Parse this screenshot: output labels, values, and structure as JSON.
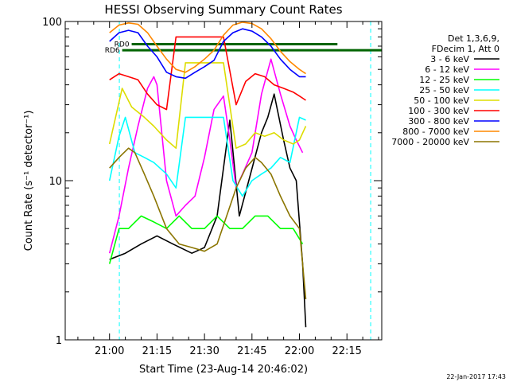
{
  "chart_data": {
    "type": "line",
    "title": "HESSI Observing Summary Count Rates",
    "xlabel": "Start Time (23-Aug-14 20:46:02)",
    "ylabel": "Count Rate (s⁻¹ detector⁻¹)",
    "yscale": "log",
    "ylim": [
      1,
      100
    ],
    "xlim_minutes": [
      -14,
      86
    ],
    "x_ticks": [
      {
        "label": "21:00",
        "min": 0
      },
      {
        "label": "21:15",
        "min": 15
      },
      {
        "label": "21:30",
        "min": 30
      },
      {
        "label": "21:45",
        "min": 45
      },
      {
        "label": "22:00",
        "min": 60
      },
      {
        "label": "22:15",
        "min": 75
      }
    ],
    "y_ticks": [
      {
        "label": "1",
        "value": 1
      },
      {
        "label": "10",
        "value": 10
      },
      {
        "label": "100",
        "value": 100
      }
    ],
    "legend_header": [
      "Det 1,3,6,9,",
      "FDecim 1, Att 0"
    ],
    "legend_position": "right",
    "annotations": [
      {
        "label": "RD0",
        "start_min": 7,
        "end_min": 72,
        "value": 72,
        "color": "#006400"
      },
      {
        "label": "RD6",
        "start_min": 4,
        "end_min": 86,
        "value": 66,
        "color": "#006400"
      }
    ],
    "vertical_markers_min": [
      3.1,
      82.5
    ],
    "series": [
      {
        "name": "3 - 6 keV",
        "color": "#000000",
        "points": [
          [
            0,
            3.2
          ],
          [
            5,
            3.5
          ],
          [
            10,
            4
          ],
          [
            15,
            4.5
          ],
          [
            20,
            4
          ],
          [
            26,
            3.5
          ],
          [
            30,
            3.8
          ],
          [
            34,
            6
          ],
          [
            38,
            24
          ],
          [
            41,
            6
          ],
          [
            44,
            10
          ],
          [
            48,
            20
          ],
          [
            50,
            25
          ],
          [
            52,
            35
          ],
          [
            55,
            18
          ],
          [
            57,
            12
          ],
          [
            59,
            10
          ],
          [
            61,
            3
          ],
          [
            62,
            1.2
          ]
        ]
      },
      {
        "name": "6 - 12 keV",
        "color": "#ff00ff",
        "points": [
          [
            0,
            3.5
          ],
          [
            3,
            6
          ],
          [
            6,
            12
          ],
          [
            9,
            22
          ],
          [
            12,
            38
          ],
          [
            14,
            45
          ],
          [
            15,
            40
          ],
          [
            18,
            10
          ],
          [
            21,
            6
          ],
          [
            24,
            7
          ],
          [
            27,
            8
          ],
          [
            30,
            14
          ],
          [
            33,
            28
          ],
          [
            36,
            34
          ],
          [
            38,
            18
          ],
          [
            40,
            9
          ],
          [
            42,
            11
          ],
          [
            45,
            15
          ],
          [
            48,
            35
          ],
          [
            51,
            58
          ],
          [
            54,
            35
          ],
          [
            57,
            22
          ],
          [
            59,
            18
          ],
          [
            61,
            15
          ]
        ]
      },
      {
        "name": "12 - 25 keV",
        "color": "#00ff00",
        "points": [
          [
            0,
            3
          ],
          [
            3,
            5
          ],
          [
            6,
            5
          ],
          [
            10,
            6
          ],
          [
            14,
            5.5
          ],
          [
            18,
            5
          ],
          [
            22,
            6
          ],
          [
            26,
            5
          ],
          [
            30,
            5
          ],
          [
            34,
            6
          ],
          [
            38,
            5
          ],
          [
            42,
            5
          ],
          [
            46,
            6
          ],
          [
            50,
            6
          ],
          [
            54,
            5
          ],
          [
            58,
            5
          ],
          [
            61,
            4
          ]
        ]
      },
      {
        "name": "25 - 50 keV",
        "color": "#00ffff",
        "points": [
          [
            0,
            10
          ],
          [
            3,
            19
          ],
          [
            5,
            25
          ],
          [
            8,
            15
          ],
          [
            11,
            14
          ],
          [
            14,
            13
          ],
          [
            18,
            11
          ],
          [
            21,
            9
          ],
          [
            24,
            25
          ],
          [
            30,
            25
          ],
          [
            36,
            25
          ],
          [
            39,
            10
          ],
          [
            42,
            8
          ],
          [
            45,
            10
          ],
          [
            48,
            11
          ],
          [
            51,
            12
          ],
          [
            54,
            14
          ],
          [
            57,
            13
          ],
          [
            60,
            25
          ],
          [
            62,
            24
          ]
        ]
      },
      {
        "name": "50 - 100 keV",
        "color": "#dddd00",
        "points": [
          [
            0,
            17
          ],
          [
            4,
            38
          ],
          [
            7,
            29
          ],
          [
            11,
            25
          ],
          [
            14,
            22
          ],
          [
            18,
            18
          ],
          [
            21,
            16
          ],
          [
            24,
            55
          ],
          [
            30,
            55
          ],
          [
            36,
            55
          ],
          [
            40,
            16
          ],
          [
            43,
            17
          ],
          [
            46,
            20
          ],
          [
            49,
            19
          ],
          [
            52,
            20
          ],
          [
            55,
            18
          ],
          [
            58,
            17
          ],
          [
            60,
            18
          ],
          [
            62,
            22
          ]
        ]
      },
      {
        "name": "100 - 300 keV",
        "color": "#ff0000",
        "points": [
          [
            0,
            43
          ],
          [
            3,
            47
          ],
          [
            6,
            45
          ],
          [
            9,
            43
          ],
          [
            12,
            35
          ],
          [
            15,
            30
          ],
          [
            18,
            28
          ],
          [
            21,
            80
          ],
          [
            30,
            80
          ],
          [
            36,
            80
          ],
          [
            40,
            30
          ],
          [
            43,
            42
          ],
          [
            46,
            47
          ],
          [
            49,
            45
          ],
          [
            52,
            40
          ],
          [
            55,
            38
          ],
          [
            58,
            36
          ],
          [
            60,
            34
          ],
          [
            62,
            32
          ]
        ]
      },
      {
        "name": "300 - 800 keV",
        "color": "#0000ff",
        "points": [
          [
            0,
            75
          ],
          [
            3,
            85
          ],
          [
            6,
            88
          ],
          [
            9,
            85
          ],
          [
            12,
            70
          ],
          [
            15,
            60
          ],
          [
            18,
            48
          ],
          [
            21,
            45
          ],
          [
            24,
            44
          ],
          [
            27,
            48
          ],
          [
            30,
            52
          ],
          [
            33,
            57
          ],
          [
            36,
            75
          ],
          [
            39,
            85
          ],
          [
            42,
            90
          ],
          [
            45,
            87
          ],
          [
            48,
            80
          ],
          [
            51,
            70
          ],
          [
            54,
            58
          ],
          [
            57,
            50
          ],
          [
            60,
            45
          ],
          [
            62,
            45
          ]
        ]
      },
      {
        "name": "800 - 7000 keV",
        "color": "#ff8800",
        "points": [
          [
            0,
            85
          ],
          [
            3,
            95
          ],
          [
            6,
            98
          ],
          [
            9,
            96
          ],
          [
            12,
            85
          ],
          [
            15,
            70
          ],
          [
            18,
            58
          ],
          [
            21,
            50
          ],
          [
            24,
            48
          ],
          [
            27,
            52
          ],
          [
            30,
            58
          ],
          [
            33,
            66
          ],
          [
            36,
            82
          ],
          [
            39,
            95
          ],
          [
            42,
            99
          ],
          [
            45,
            97
          ],
          [
            48,
            90
          ],
          [
            51,
            78
          ],
          [
            54,
            65
          ],
          [
            57,
            56
          ],
          [
            60,
            50
          ],
          [
            62,
            47
          ]
        ]
      },
      {
        "name": "7000 - 20000 keV",
        "color": "#8b7500",
        "points": [
          [
            0,
            12
          ],
          [
            3,
            14
          ],
          [
            6,
            16
          ],
          [
            8,
            15
          ],
          [
            11,
            11
          ],
          [
            14,
            8
          ],
          [
            18,
            5
          ],
          [
            22,
            4
          ],
          [
            26,
            3.8
          ],
          [
            30,
            3.6
          ],
          [
            34,
            4
          ],
          [
            37,
            6
          ],
          [
            40,
            9
          ],
          [
            43,
            12
          ],
          [
            46,
            14
          ],
          [
            48,
            13
          ],
          [
            51,
            11
          ],
          [
            54,
            8
          ],
          [
            57,
            6
          ],
          [
            60,
            5
          ],
          [
            62,
            1.8
          ]
        ]
      }
    ]
  },
  "timestamp": "22-Jan-2017 17:43"
}
